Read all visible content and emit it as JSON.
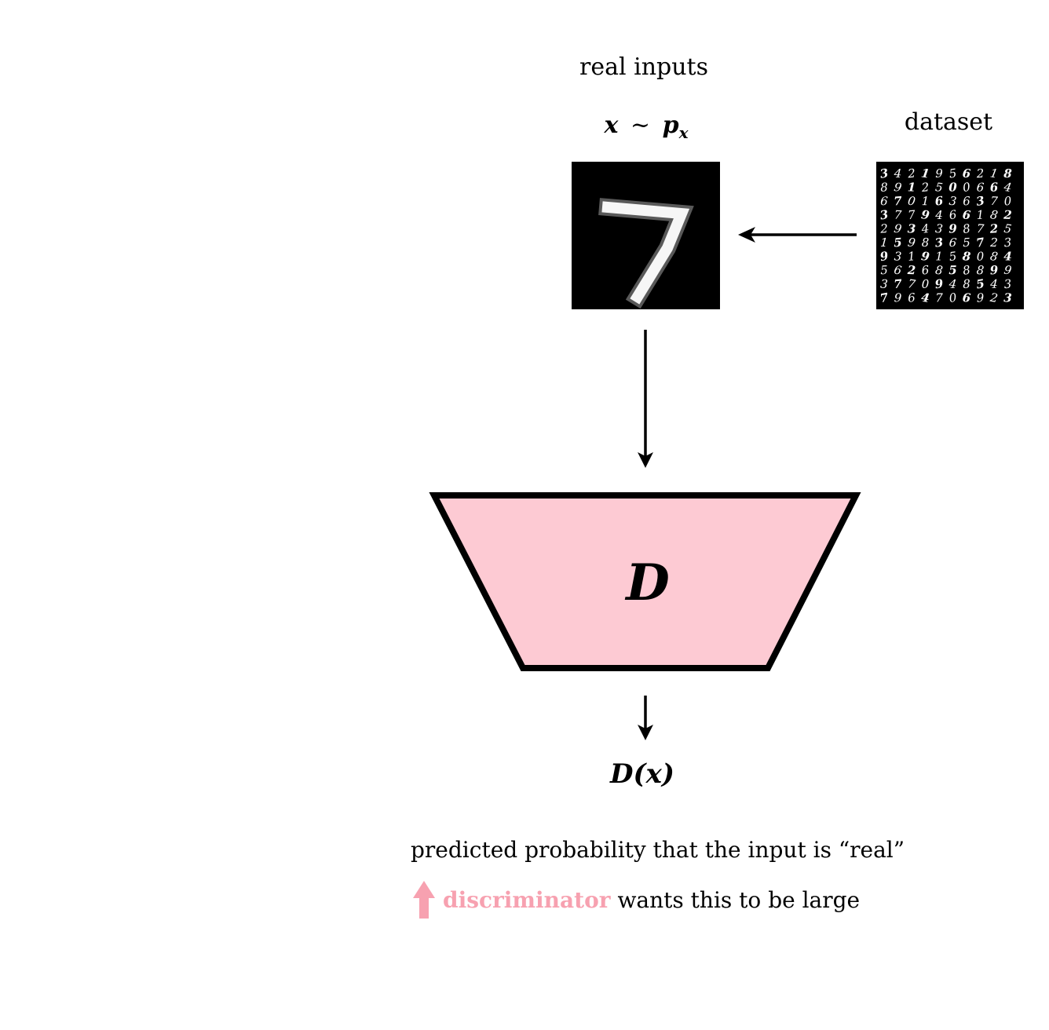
{
  "labels": {
    "real_inputs": "real inputs",
    "dataset": "dataset",
    "x_var": "x",
    "tilde": "~",
    "p_var": "p",
    "p_sub": "x",
    "d_symbol": "D",
    "d_output": "D(x)",
    "predicted": "predicted probability that the input is “real”",
    "discriminator": "discriminator",
    "wants": "wants this to be large"
  },
  "images": {
    "sample_digit": "7",
    "dataset_grid": [
      "3421956218",
      "8912500664",
      "6701636370",
      "3779466182",
      "2934398725",
      "1598365723",
      "9319158084",
      "5626858899",
      "3770948543",
      "7964706923"
    ]
  },
  "colors": {
    "discriminator": "#f7a1b0",
    "trapezoid_fill": "#fdcad3",
    "stroke": "#000000"
  }
}
